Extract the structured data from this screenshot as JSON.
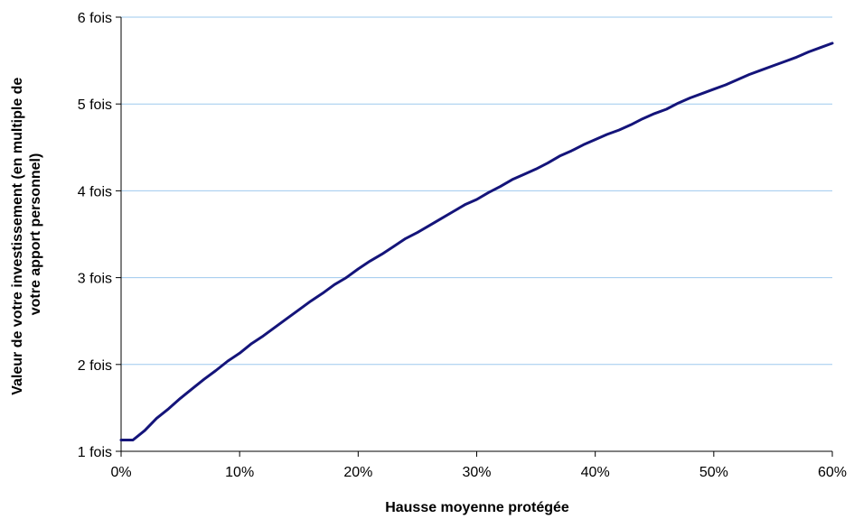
{
  "chart_data": {
    "type": "line",
    "title": "",
    "xlabel": "Hausse moyenne protégée",
    "ylabel_lines": [
      "Valeur de votre investissement (en multiple de",
      "votre apport personnel)"
    ],
    "xlim": [
      0,
      0.6
    ],
    "ylim": [
      1,
      6
    ],
    "x_ticks": [
      {
        "value": 0,
        "label": "0%"
      },
      {
        "value": 0.1,
        "label": "10%"
      },
      {
        "value": 0.2,
        "label": "20%"
      },
      {
        "value": 0.3,
        "label": "30%"
      },
      {
        "value": 0.4,
        "label": "40%"
      },
      {
        "value": 0.5,
        "label": "50%"
      },
      {
        "value": 0.6,
        "label": "60%"
      }
    ],
    "y_ticks": [
      {
        "value": 1,
        "label": "1 fois"
      },
      {
        "value": 2,
        "label": "2 fois"
      },
      {
        "value": 3,
        "label": "3 fois"
      },
      {
        "value": 4,
        "label": "4 fois"
      },
      {
        "value": 5,
        "label": "5 fois"
      },
      {
        "value": 6,
        "label": "6 fois"
      }
    ],
    "grid": "horizontal",
    "legend": "none",
    "colors": {
      "line": "#14147a",
      "grid": "#9ec9ee",
      "axis": "#000000"
    },
    "series": [
      {
        "x": [
          0,
          0.01,
          0.02,
          0.03,
          0.04,
          0.05,
          0.06,
          0.07,
          0.08,
          0.09,
          0.1,
          0.11,
          0.12,
          0.13,
          0.14,
          0.15,
          0.16,
          0.17,
          0.18,
          0.19,
          0.2,
          0.21,
          0.22,
          0.23,
          0.24,
          0.25,
          0.26,
          0.27,
          0.28,
          0.29,
          0.3,
          0.31,
          0.32,
          0.33,
          0.34,
          0.35,
          0.36,
          0.37,
          0.38,
          0.39,
          0.4,
          0.41,
          0.42,
          0.43,
          0.44,
          0.45,
          0.46,
          0.47,
          0.48,
          0.49,
          0.5,
          0.51,
          0.52,
          0.53,
          0.54,
          0.55,
          0.56,
          0.57,
          0.58,
          0.59,
          0.6
        ],
        "values": [
          1.13,
          1.13,
          1.24,
          1.38,
          1.49,
          1.61,
          1.72,
          1.83,
          1.93,
          2.04,
          2.13,
          2.24,
          2.33,
          2.43,
          2.53,
          2.63,
          2.73,
          2.82,
          2.92,
          3.0,
          3.1,
          3.19,
          3.27,
          3.36,
          3.45,
          3.52,
          3.6,
          3.68,
          3.76,
          3.84,
          3.9,
          3.98,
          4.05,
          4.13,
          4.19,
          4.25,
          4.32,
          4.4,
          4.46,
          4.53,
          4.59,
          4.65,
          4.7,
          4.76,
          4.83,
          4.89,
          4.94,
          5.01,
          5.07,
          5.12,
          5.17,
          5.22,
          5.28,
          5.34,
          5.39,
          5.44,
          5.49,
          5.54,
          5.6,
          5.65,
          5.7
        ]
      }
    ]
  }
}
